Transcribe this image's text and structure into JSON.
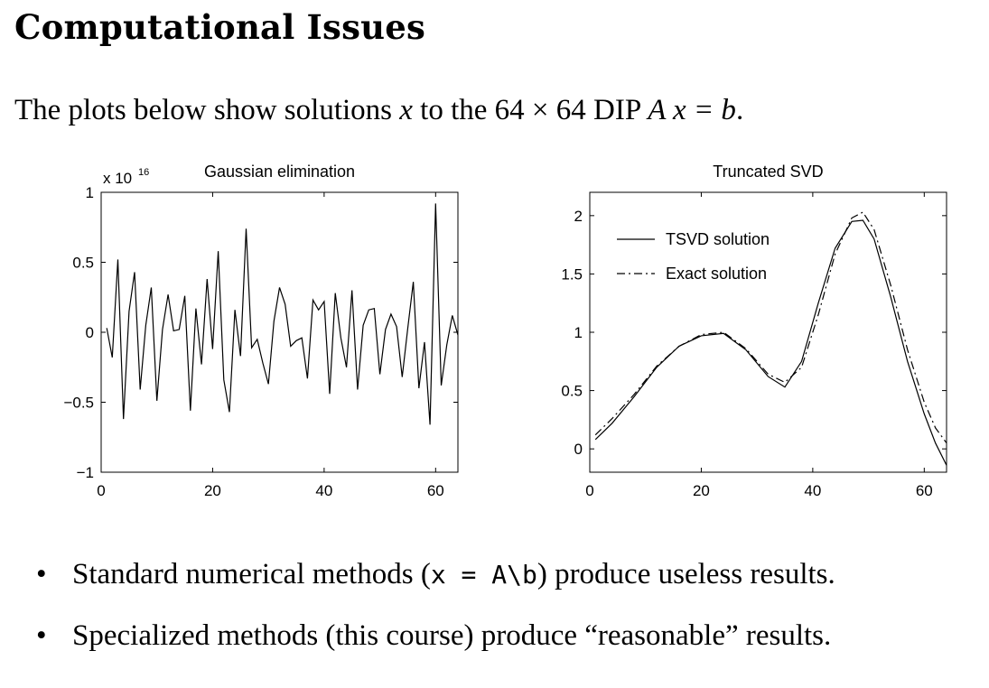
{
  "slide": {
    "title": "Computational Issues",
    "intro": {
      "prefix": "The plots below show solutions ",
      "var": "x",
      "middle": " to the 64 × 64 DIP ",
      "equation": "A x = b",
      "suffix": "."
    },
    "bullets": [
      {
        "dot": "•",
        "pre": "Standard numerical methods (",
        "code": "x = A\\b",
        "post": ") produce useless results."
      },
      {
        "dot": "•",
        "pre": "Specialized methods (this course) produce “reasonable” results.",
        "code": "",
        "post": ""
      }
    ]
  },
  "chart_data": [
    {
      "type": "line",
      "title": "Gaussian elimination",
      "scale_label": "x 10",
      "scale_exponent": "16",
      "xlim": [
        0,
        64
      ],
      "ylim": [
        -1,
        1
      ],
      "xticks": [
        0,
        20,
        40,
        60
      ],
      "xtick_labels": [
        "0",
        "20",
        "40",
        "60"
      ],
      "yticks": [
        -1,
        -0.5,
        0,
        0.5,
        1
      ],
      "ytick_labels": [
        "−1",
        "−0.5",
        "0",
        "0.5",
        "1"
      ],
      "series": [
        {
          "style": "solid",
          "x": [
            1,
            2,
            3,
            4,
            5,
            6,
            7,
            8,
            9,
            10,
            11,
            12,
            13,
            14,
            15,
            16,
            17,
            18,
            19,
            20,
            21,
            22,
            23,
            24,
            25,
            26,
            27,
            28,
            29,
            30,
            31,
            32,
            33,
            34,
            35,
            36,
            37,
            38,
            39,
            40,
            41,
            42,
            43,
            44,
            45,
            46,
            47,
            48,
            49,
            50,
            51,
            52,
            53,
            54,
            55,
            56,
            57,
            58,
            59,
            60,
            61,
            62,
            63,
            64
          ],
          "y": [
            0.03,
            -0.18,
            0.52,
            -0.62,
            0.15,
            0.43,
            -0.41,
            0.05,
            0.32,
            -0.49,
            0.02,
            0.27,
            0.01,
            0.02,
            0.26,
            -0.56,
            0.17,
            -0.23,
            0.38,
            -0.12,
            0.58,
            -0.34,
            -0.57,
            0.16,
            -0.17,
            0.74,
            -0.11,
            -0.05,
            -0.22,
            -0.37,
            0.08,
            0.32,
            0.2,
            -0.1,
            -0.06,
            -0.04,
            -0.33,
            0.23,
            0.16,
            0.22,
            -0.44,
            0.28,
            -0.04,
            -0.25,
            0.3,
            -0.41,
            0.05,
            0.16,
            0.17,
            -0.3,
            0.02,
            0.13,
            0.04,
            -0.32,
            0.03,
            0.36,
            -0.4,
            -0.07,
            -0.66,
            0.92,
            -0.38,
            -0.09,
            0.12,
            -0.02
          ]
        }
      ]
    },
    {
      "type": "line",
      "title": "Truncated SVD",
      "xlim": [
        0,
        64
      ],
      "ylim": [
        -0.2,
        2.2
      ],
      "xticks": [
        0,
        20,
        40,
        60
      ],
      "xtick_labels": [
        "0",
        "20",
        "40",
        "60"
      ],
      "yticks": [
        0,
        0.5,
        1,
        1.5,
        2
      ],
      "ytick_labels": [
        "0",
        "0.5",
        "1",
        "1.5",
        "2"
      ],
      "legend": {
        "position": "top-left",
        "entries": [
          "TSVD solution",
          "Exact solution"
        ]
      },
      "series": [
        {
          "name": "TSVD solution",
          "style": "solid",
          "x": [
            1,
            4,
            8,
            12,
            16,
            20,
            24,
            28,
            32,
            35,
            38,
            41,
            44,
            47,
            49,
            51,
            54,
            57,
            60,
            62,
            64
          ],
          "y": [
            0.08,
            0.22,
            0.45,
            0.7,
            0.88,
            0.97,
            0.99,
            0.85,
            0.62,
            0.53,
            0.75,
            1.25,
            1.72,
            1.95,
            1.96,
            1.8,
            1.3,
            0.75,
            0.3,
            0.05,
            -0.14
          ]
        },
        {
          "name": "Exact solution",
          "style": "dashdot",
          "x": [
            1,
            4,
            8,
            12,
            16,
            20,
            24,
            28,
            32,
            35,
            38,
            41,
            44,
            47,
            49,
            51,
            54,
            57,
            60,
            62,
            64
          ],
          "y": [
            0.12,
            0.26,
            0.47,
            0.71,
            0.88,
            0.98,
            1.0,
            0.86,
            0.64,
            0.57,
            0.7,
            1.15,
            1.67,
            1.98,
            2.03,
            1.88,
            1.4,
            0.85,
            0.4,
            0.18,
            0.05
          ]
        }
      ]
    }
  ]
}
